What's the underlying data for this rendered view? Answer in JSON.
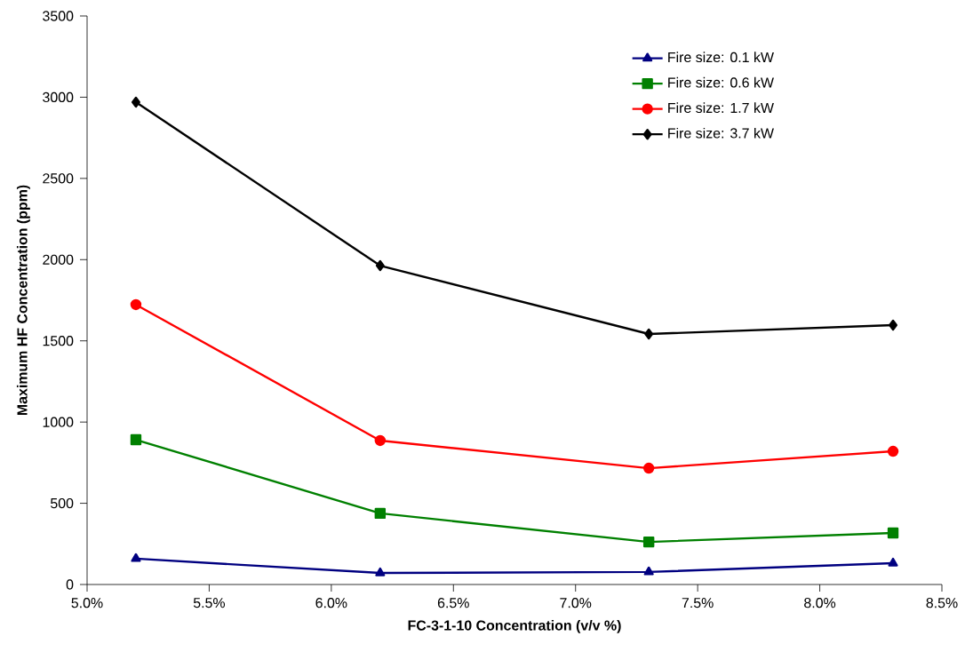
{
  "chart_data": {
    "type": "line",
    "xlabel": "FC-3-1-10 Concentration (v/v %)",
    "ylabel": "Maximum HF Concentration (ppm)",
    "x": [
      5.2,
      6.2,
      7.3,
      8.3
    ],
    "series": [
      {
        "name": "Fire size: 0.1 kW",
        "color": "#000080",
        "marker": "triangle",
        "values": [
          159,
          71,
          77,
          131
        ]
      },
      {
        "name": "Fire size: 0.6 kW",
        "color": "#008000",
        "marker": "square",
        "values": [
          891,
          438,
          262,
          317
        ]
      },
      {
        "name": "Fire size: 1.7 kW",
        "color": "#ff0000",
        "marker": "circle",
        "values": [
          1723,
          886,
          716,
          820
        ]
      },
      {
        "name": "Fire size: 3.7 kW",
        "color": "#000000",
        "marker": "diamond",
        "values": [
          2970,
          1963,
          1542,
          1597
        ]
      }
    ],
    "xlim": [
      5.0,
      8.5
    ],
    "xticks": [
      {
        "value": 5.0,
        "label": "5.0%"
      },
      {
        "value": 5.5,
        "label": "5.5%"
      },
      {
        "value": 6.0,
        "label": "6.0%"
      },
      {
        "value": 6.5,
        "label": "6.5%"
      },
      {
        "value": 7.0,
        "label": "7.0%"
      },
      {
        "value": 7.5,
        "label": "7.5%"
      },
      {
        "value": 8.0,
        "label": "8.0%"
      },
      {
        "value": 8.5,
        "label": "8.5%"
      }
    ],
    "ylim": [
      0,
      3500
    ],
    "yticks": [
      0,
      500,
      1000,
      1500,
      2000,
      2500,
      3000,
      3500
    ],
    "grid": false,
    "legend": "top right",
    "line_style": "solid"
  }
}
